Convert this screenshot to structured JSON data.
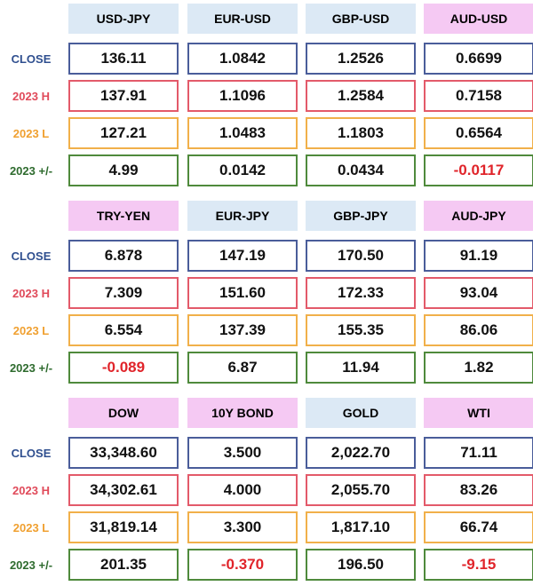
{
  "row_labels": [
    "CLOSE",
    "2023 H",
    "2023 L",
    "2023 +/-"
  ],
  "blocks": [
    {
      "headers": [
        {
          "label": "USD-JPY",
          "color": "#dce9f5"
        },
        {
          "label": "EUR-USD",
          "color": "#dce9f5"
        },
        {
          "label": "GBP-USD",
          "color": "#dce9f5"
        },
        {
          "label": "AUD-USD",
          "color": "#f5c9f3"
        }
      ],
      "rows": [
        [
          "136.11",
          "1.0842",
          "1.2526",
          "0.6699"
        ],
        [
          "137.91",
          "1.1096",
          "1.2584",
          "0.7158"
        ],
        [
          "127.21",
          "1.0483",
          "1.1803",
          "0.6564"
        ],
        [
          "4.99",
          "0.0142",
          "0.0434",
          "-0.0117"
        ]
      ]
    },
    {
      "headers": [
        {
          "label": "TRY-YEN",
          "color": "#f5c9f3"
        },
        {
          "label": "EUR-JPY",
          "color": "#dce9f5"
        },
        {
          "label": "GBP-JPY",
          "color": "#dce9f5"
        },
        {
          "label": "AUD-JPY",
          "color": "#f5c9f3"
        }
      ],
      "rows": [
        [
          "6.878",
          "147.19",
          "170.50",
          "91.19"
        ],
        [
          "7.309",
          "151.60",
          "172.33",
          "93.04"
        ],
        [
          "6.554",
          "137.39",
          "155.35",
          "86.06"
        ],
        [
          "-0.089",
          "6.87",
          "11.94",
          "1.82"
        ]
      ]
    },
    {
      "headers": [
        {
          "label": "DOW",
          "color": "#f5c9f3"
        },
        {
          "label": "10Y BOND",
          "color": "#f5c9f3"
        },
        {
          "label": "GOLD",
          "color": "#dce9f5"
        },
        {
          "label": "WTI",
          "color": "#f5c9f3"
        }
      ],
      "rows": [
        [
          "33,348.60",
          "3.500",
          "2,022.70",
          "71.11"
        ],
        [
          "34,302.61",
          "4.000",
          "2,055.70",
          "83.26"
        ],
        [
          "31,819.14",
          "3.300",
          "1,817.10",
          "66.74"
        ],
        [
          "201.35",
          "-0.370",
          "196.50",
          "-9.15"
        ]
      ]
    }
  ]
}
